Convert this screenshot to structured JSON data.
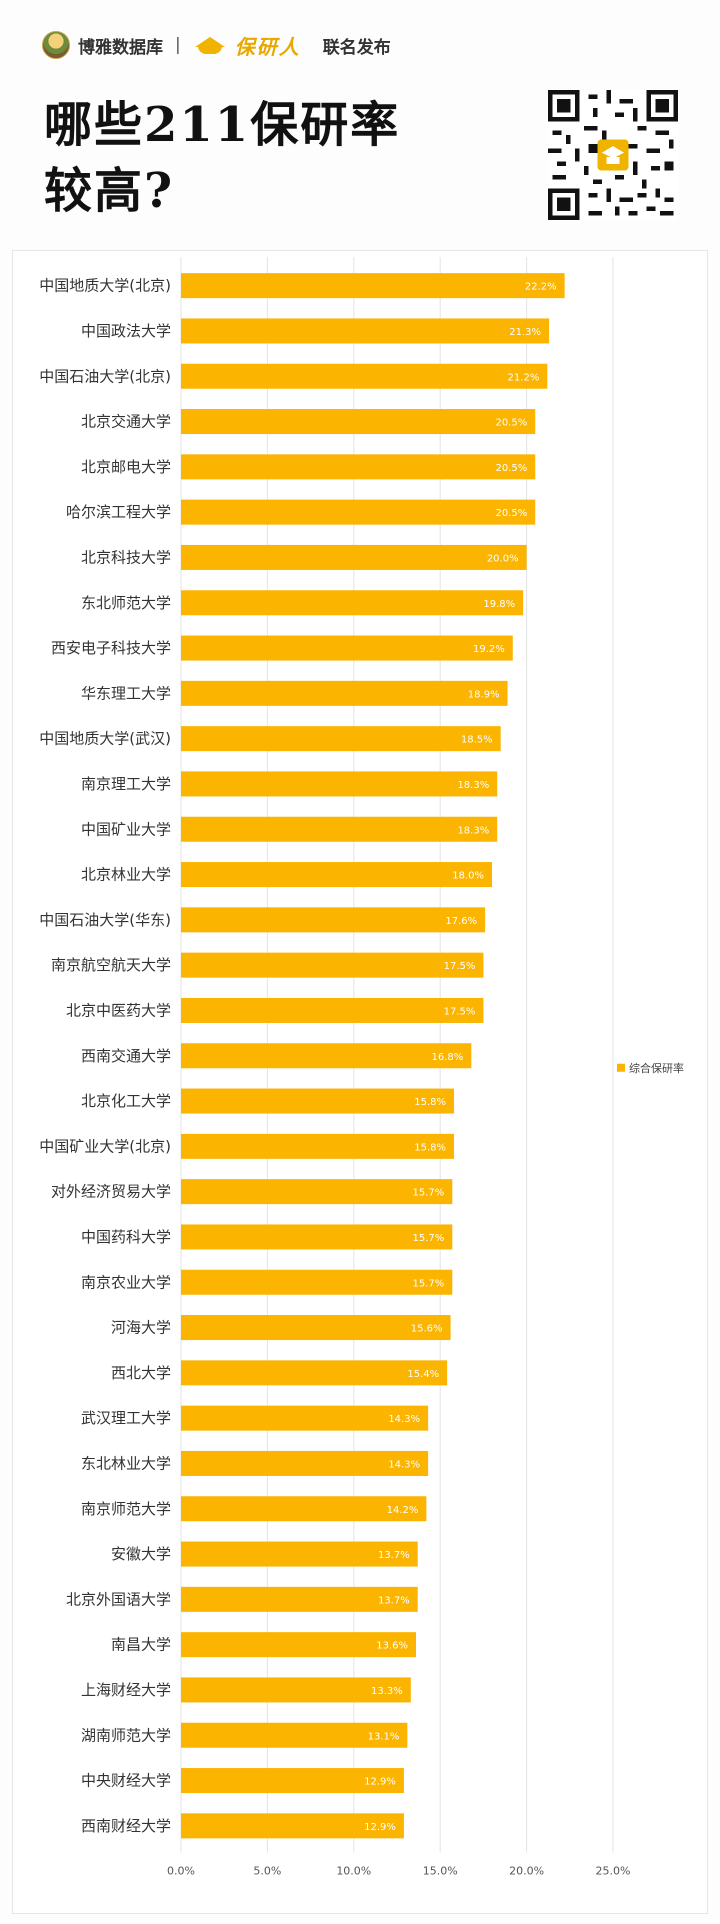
{
  "header": {
    "brand_name": "博雅数据库",
    "brand_sep": "|",
    "brand_partner": "保研人",
    "brand_joint": "联名发布",
    "title_line1": "哪些211保研率",
    "title_line2": "较高?"
  },
  "colors": {
    "bar": "#fbb400",
    "grid": "#e3e3e3",
    "title": "#111111"
  },
  "icons": [
    "boya-logo-icon",
    "graduation-cap-icon",
    "qr-code-icon"
  ],
  "chart_data": {
    "type": "bar",
    "orientation": "horizontal",
    "categories": [
      "中国地质大学(北京)",
      "中国政法大学",
      "中国石油大学(北京)",
      "北京交通大学",
      "北京邮电大学",
      "哈尔滨工程大学",
      "北京科技大学",
      "东北师范大学",
      "西安电子科技大学",
      "华东理工大学",
      "中国地质大学(武汉)",
      "南京理工大学",
      "中国矿业大学",
      "北京林业大学",
      "中国石油大学(华东)",
      "南京航空航天大学",
      "北京中医药大学",
      "西南交通大学",
      "北京化工大学",
      "中国矿业大学(北京)",
      "对外经济贸易大学",
      "中国药科大学",
      "南京农业大学",
      "河海大学",
      "西北大学",
      "武汉理工大学",
      "东北林业大学",
      "南京师范大学",
      "安徽大学",
      "北京外国语大学",
      "南昌大学",
      "上海财经大学",
      "湖南师范大学",
      "中央财经大学",
      "西南财经大学"
    ],
    "series": [
      {
        "name": "综合保研率",
        "values": [
          22.2,
          21.3,
          21.2,
          20.5,
          20.5,
          20.5,
          20.0,
          19.8,
          19.2,
          18.9,
          18.5,
          18.3,
          18.3,
          18.0,
          17.6,
          17.5,
          17.5,
          16.8,
          15.8,
          15.8,
          15.7,
          15.7,
          15.7,
          15.6,
          15.4,
          14.3,
          14.3,
          14.2,
          13.7,
          13.7,
          13.6,
          13.3,
          13.1,
          12.9,
          12.9
        ],
        "labels": [
          "22.2%",
          "21.3%",
          "21.2%",
          "20.5%",
          "20.5%",
          "20.5%",
          "20.0%",
          "19.8%",
          "19.2%",
          "18.9%",
          "18.5%",
          "18.3%",
          "18.3%",
          "18.0%",
          "17.6%",
          "17.5%",
          "17.5%",
          "16.8%",
          "15.8%",
          "15.8%",
          "15.7%",
          "15.7%",
          "15.7%",
          "15.6%",
          "15.4%",
          "14.3%",
          "14.3%",
          "14.2%",
          "13.7%",
          "13.7%",
          "13.6%",
          "13.3%",
          "13.1%",
          "12.9%",
          "12.9%"
        ]
      }
    ],
    "xlim": [
      0,
      25
    ],
    "xticks": [
      "0.0%",
      "5.0%",
      "10.0%",
      "15.0%",
      "20.0%",
      "25.0%"
    ],
    "grid": true,
    "legend_position": "right"
  }
}
